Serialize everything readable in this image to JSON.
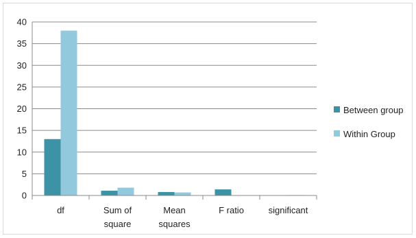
{
  "chart_data": {
    "type": "bar",
    "categories": [
      [
        "df"
      ],
      [
        "Sum of",
        "square"
      ],
      [
        "Mean",
        "squares"
      ],
      [
        "F ratio"
      ],
      [
        "significant"
      ]
    ],
    "series": [
      {
        "name": "Between group",
        "color": "#3c93a6",
        "values": [
          13,
          1.1,
          0.8,
          1.4,
          0.05
        ]
      },
      {
        "name": "Within Group",
        "color": "#92c9dc",
        "values": [
          38,
          1.8,
          0.7,
          0,
          0.1
        ]
      }
    ],
    "ylim": [
      0,
      40
    ],
    "yticks": [
      0,
      5,
      10,
      15,
      20,
      25,
      30,
      35,
      40
    ],
    "grid": true,
    "legend_position": "right"
  }
}
